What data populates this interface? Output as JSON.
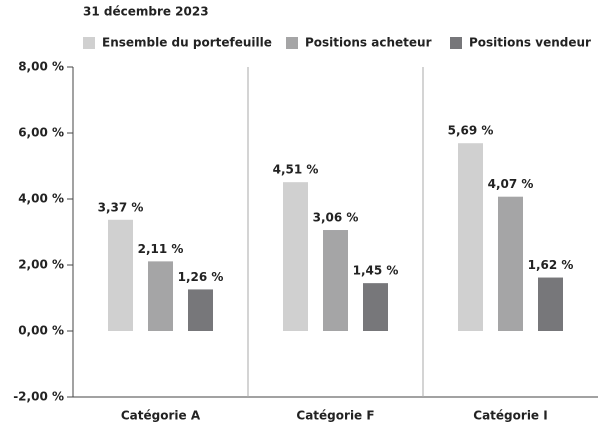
{
  "chart_data": {
    "type": "bar",
    "title": "31 décembre 2023",
    "categories": [
      "Catégorie A",
      "Catégorie F",
      "Catégorie I"
    ],
    "series": [
      {
        "name": "Ensemble du portefeuille",
        "color": "#d0d0d0",
        "values": [
          3.37,
          4.51,
          5.69
        ],
        "value_labels": [
          "3,37 %",
          "4,51 %",
          "5,69 %"
        ]
      },
      {
        "name": "Positions acheteur",
        "color": "#a5a5a6",
        "values": [
          2.11,
          3.06,
          4.07
        ],
        "value_labels": [
          "2,11 %",
          "3,06 %",
          "4,07 %"
        ]
      },
      {
        "name": "Positions vendeur",
        "color": "#77777a",
        "values": [
          1.26,
          1.45,
          1.62
        ],
        "value_labels": [
          "1,26 %",
          "1,45 %",
          "1,62 %"
        ]
      }
    ],
    "ylim": [
      -2,
      8
    ],
    "yticks": [
      {
        "value": -2,
        "label": "-2,00 %"
      },
      {
        "value": 0,
        "label": "0,00 %"
      },
      {
        "value": 2,
        "label": "2,00 %"
      },
      {
        "value": 4,
        "label": "4,00 %"
      },
      {
        "value": 6,
        "label": "6,00 %"
      },
      {
        "value": 8,
        "label": "8,00 %"
      }
    ]
  }
}
